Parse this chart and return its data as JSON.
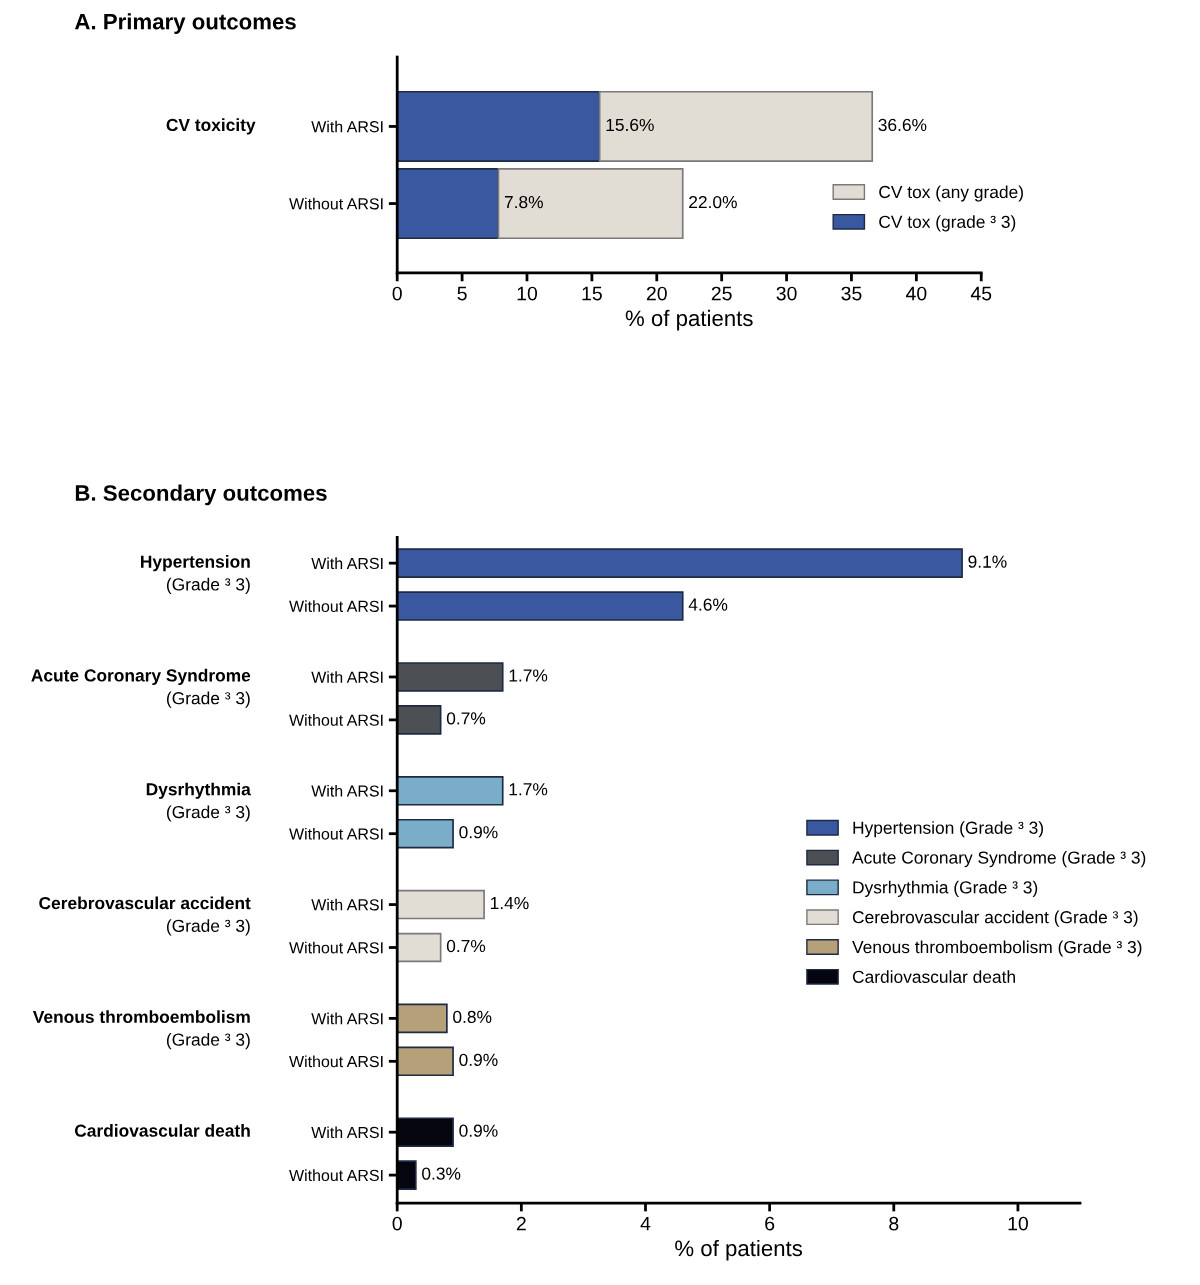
{
  "chart_data": [
    {
      "type": "bar",
      "orientation": "horizontal",
      "stacked": true,
      "title": "A. Primary outcomes",
      "xlabel": "% of patients",
      "categories": [
        "With ARSI",
        "Without ARSI"
      ],
      "annotations": [
        "CV toxicity"
      ],
      "series": [
        {
          "name": "CV tox (grade ³ 3)",
          "color": "#3a58a0",
          "values": [
            15.6,
            7.8
          ],
          "value_labels": [
            "15.6%",
            "7.8%"
          ]
        },
        {
          "name": "CV tox (any grade)",
          "color": "#e1ddd5",
          "values": [
            21.0,
            14.2
          ]
        }
      ],
      "totals": [
        "36.6%",
        "22.0%"
      ],
      "xlim": [
        0,
        45
      ],
      "xticks": [
        0,
        5,
        10,
        15,
        20,
        25,
        30,
        35,
        40,
        45
      ],
      "grid": false,
      "legend": "lower right"
    },
    {
      "type": "bar",
      "orientation": "horizontal",
      "title": "B. Secondary outcomes",
      "xlabel": "% of patients",
      "categories": [
        "With ARSI",
        "Without ARSI",
        "With ARSI",
        "Without ARSI",
        "With ARSI",
        "Without ARSI",
        "With ARSI",
        "Without ARSI",
        "With ARSI",
        "Without ARSI",
        "With ARSI",
        "Without ARSI"
      ],
      "annotations": [
        "Hypertension\n(Grade ³ 3)",
        "Acute Coronary Syndrome\n(Grade ³ 3)",
        "Dysrhythmia\n(Grade ³ 3)",
        "Cerebrovascular accident\n(Grade ³ 3)",
        "Venous thromboembolism\n(Grade ³ 3)",
        "Cardiovascular death"
      ],
      "series": [
        {
          "name": "Hypertension (Grade ³ 3)",
          "color": "#3a58a0",
          "values": [
            9.1,
            4.6,
            null,
            null,
            null,
            null,
            null,
            null,
            null,
            null,
            null,
            null
          ],
          "value_labels": [
            "9.1%",
            "4.6%",
            null,
            null,
            null,
            null,
            null,
            null,
            null,
            null,
            null,
            null
          ]
        },
        {
          "name": "Acute Coronary Syndrome (Grade ³ 3)",
          "color": "#4c4f54",
          "values": [
            null,
            null,
            1.7,
            0.7,
            null,
            null,
            null,
            null,
            null,
            null,
            null,
            null
          ],
          "value_labels": [
            null,
            null,
            "1.7%",
            "0.7%",
            null,
            null,
            null,
            null,
            null,
            null,
            null,
            null
          ]
        },
        {
          "name": "Dysrhythmia (Grade ³ 3)",
          "color": "#7aaec8",
          "values": [
            null,
            null,
            null,
            null,
            1.7,
            0.9,
            null,
            null,
            null,
            null,
            null,
            null
          ],
          "value_labels": [
            null,
            null,
            null,
            null,
            "1.7%",
            "0.9%",
            null,
            null,
            null,
            null,
            null,
            null
          ]
        },
        {
          "name": "Cerebrovascular accident (Grade ³ 3)",
          "color": "#e1ddd5",
          "values": [
            null,
            null,
            null,
            null,
            null,
            null,
            1.4,
            0.7,
            null,
            null,
            null,
            null
          ],
          "value_labels": [
            null,
            null,
            null,
            null,
            null,
            null,
            "1.4%",
            "0.7%",
            null,
            null,
            null,
            null
          ]
        },
        {
          "name": "Venous thromboembolism (Grade ³ 3)",
          "color": "#b5a07a",
          "values": [
            null,
            null,
            null,
            null,
            null,
            null,
            null,
            null,
            0.8,
            0.9,
            null,
            null
          ],
          "value_labels": [
            null,
            null,
            null,
            null,
            null,
            null,
            null,
            null,
            "0.8%",
            "0.9%",
            null,
            null
          ]
        },
        {
          "name": "Cardiovascular death",
          "color": "#05050f",
          "values": [
            null,
            null,
            null,
            null,
            null,
            null,
            null,
            null,
            null,
            null,
            0.9,
            0.3
          ],
          "value_labels": [
            null,
            null,
            null,
            null,
            null,
            null,
            null,
            null,
            null,
            null,
            "0.9%",
            "0.3%"
          ]
        }
      ],
      "xlim": [
        0,
        11
      ],
      "xticks": [
        0,
        2,
        4,
        6,
        8,
        10
      ],
      "grid": false,
      "legend": "right"
    }
  ]
}
